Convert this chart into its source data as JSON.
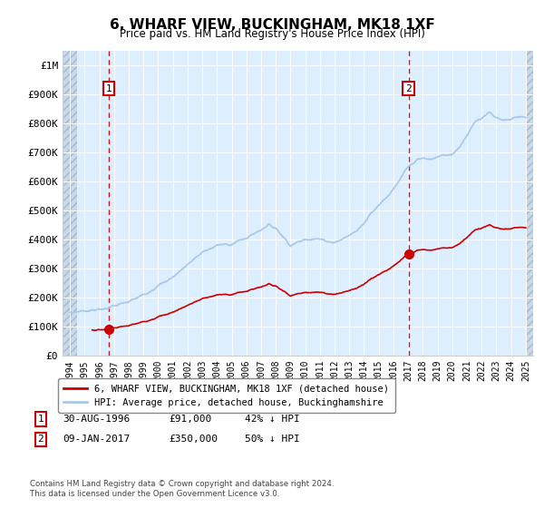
{
  "title": "6, WHARF VIEW, BUCKINGHAM, MK18 1XF",
  "subtitle": "Price paid vs. HM Land Registry's House Price Index (HPI)",
  "hpi_color": "#a8c8e8",
  "price_color": "#cc0000",
  "bg_color": "#ddeeff",
  "sale1": {
    "date": 1996.66,
    "price": 91000,
    "label": "1"
  },
  "sale2": {
    "date": 2017.03,
    "price": 350000,
    "label": "2"
  },
  "ylim": [
    0,
    1050000
  ],
  "xlim": [
    1993.5,
    2025.5
  ],
  "yticks": [
    0,
    100000,
    200000,
    300000,
    400000,
    500000,
    600000,
    700000,
    800000,
    900000,
    1000000
  ],
  "ytick_labels": [
    "£0",
    "£100K",
    "£200K",
    "£300K",
    "£400K",
    "£500K",
    "£600K",
    "£700K",
    "£800K",
    "£900K",
    "£1M"
  ],
  "xticks": [
    1994,
    1995,
    1996,
    1997,
    1998,
    1999,
    2000,
    2001,
    2002,
    2003,
    2004,
    2005,
    2006,
    2007,
    2008,
    2009,
    2010,
    2011,
    2012,
    2013,
    2014,
    2015,
    2016,
    2017,
    2018,
    2019,
    2020,
    2021,
    2022,
    2023,
    2024,
    2025
  ],
  "legend_line1": "6, WHARF VIEW, BUCKINGHAM, MK18 1XF (detached house)",
  "legend_line2": "HPI: Average price, detached house, Buckinghamshire",
  "table_row1": [
    "1",
    "30-AUG-1996",
    "£91,000",
    "42% ↓ HPI"
  ],
  "table_row2": [
    "2",
    "09-JAN-2017",
    "£350,000",
    "50% ↓ HPI"
  ],
  "footnote": "Contains HM Land Registry data © Crown copyright and database right 2024.\nThis data is licensed under the Open Government Licence v3.0."
}
